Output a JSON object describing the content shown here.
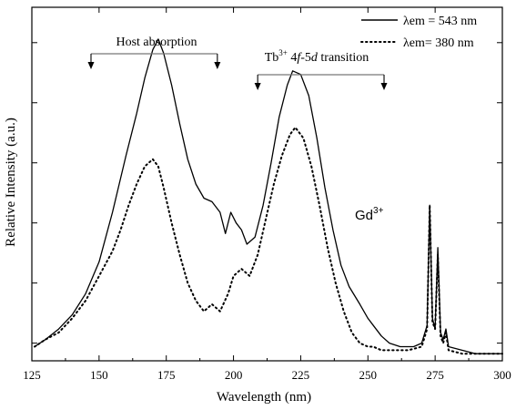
{
  "chart_data": {
    "type": "line",
    "xlabel": "Wavelength (nm)",
    "ylabel": "Relative Intensity (a.u.)",
    "xlim": [
      125,
      300
    ],
    "ylim": [
      0,
      1
    ],
    "x_ticks": [
      125,
      150,
      175,
      200,
      225,
      250,
      275,
      300
    ],
    "y_ticks": [
      0.05,
      0.22,
      0.39,
      0.56,
      0.73,
      0.9
    ],
    "y_tick_labels_shown": false,
    "grid": false,
    "legend": {
      "position": "top-right",
      "entries": [
        {
          "symbol": "λ",
          "label": "em = 543 nm",
          "style": "solid"
        },
        {
          "symbol": "λ",
          "label": "em= 380 nm",
          "style": "dotted"
        }
      ]
    },
    "annotations": {
      "host": {
        "text": "Host absorption",
        "x_start": 147,
        "x_end": 194
      },
      "tb": {
        "ion": "Tb",
        "ion_sup": "3+",
        "transition_a": "4",
        "transition_f": "f",
        "transition_b": "-5",
        "transition_d": "d",
        "suffix": " transition",
        "x_start": 209,
        "x_end": 256
      },
      "gd": {
        "ion": "Gd",
        "ion_sup": "3+"
      }
    },
    "series": [
      {
        "style": "solid",
        "points": [
          [
            126,
            0.04
          ],
          [
            130,
            0.06
          ],
          [
            135,
            0.09
          ],
          [
            140,
            0.13
          ],
          [
            145,
            0.19
          ],
          [
            150,
            0.28
          ],
          [
            155,
            0.42
          ],
          [
            160,
            0.58
          ],
          [
            164,
            0.7
          ],
          [
            167,
            0.8
          ],
          [
            170,
            0.88
          ],
          [
            172,
            0.91
          ],
          [
            174,
            0.87
          ],
          [
            177,
            0.78
          ],
          [
            180,
            0.67
          ],
          [
            183,
            0.57
          ],
          [
            186,
            0.5
          ],
          [
            189,
            0.46
          ],
          [
            192,
            0.45
          ],
          [
            195,
            0.42
          ],
          [
            197,
            0.36
          ],
          [
            199,
            0.42
          ],
          [
            201,
            0.39
          ],
          [
            203,
            0.37
          ],
          [
            205,
            0.33
          ],
          [
            208,
            0.35
          ],
          [
            211,
            0.44
          ],
          [
            214,
            0.56
          ],
          [
            217,
            0.69
          ],
          [
            220,
            0.78
          ],
          [
            222,
            0.82
          ],
          [
            225,
            0.81
          ],
          [
            228,
            0.75
          ],
          [
            231,
            0.63
          ],
          [
            234,
            0.49
          ],
          [
            237,
            0.37
          ],
          [
            240,
            0.27
          ],
          [
            243,
            0.21
          ],
          [
            247,
            0.16
          ],
          [
            250,
            0.12
          ],
          [
            252,
            0.1
          ],
          [
            255,
            0.07
          ],
          [
            258,
            0.05
          ],
          [
            262,
            0.04
          ],
          [
            267,
            0.04
          ],
          [
            270,
            0.05
          ],
          [
            272,
            0.1
          ],
          [
            273,
            0.44
          ],
          [
            274,
            0.12
          ],
          [
            275,
            0.09
          ],
          [
            276,
            0.32
          ],
          [
            277,
            0.08
          ],
          [
            278,
            0.06
          ],
          [
            279,
            0.09
          ],
          [
            280,
            0.04
          ],
          [
            285,
            0.03
          ],
          [
            290,
            0.02
          ],
          [
            295,
            0.02
          ],
          [
            300,
            0.02
          ]
        ]
      },
      {
        "style": "dotted",
        "points": [
          [
            126,
            0.04
          ],
          [
            130,
            0.06
          ],
          [
            135,
            0.08
          ],
          [
            140,
            0.12
          ],
          [
            145,
            0.17
          ],
          [
            150,
            0.24
          ],
          [
            155,
            0.31
          ],
          [
            158,
            0.37
          ],
          [
            161,
            0.44
          ],
          [
            164,
            0.5
          ],
          [
            167,
            0.55
          ],
          [
            170,
            0.57
          ],
          [
            172,
            0.55
          ],
          [
            174,
            0.49
          ],
          [
            177,
            0.39
          ],
          [
            180,
            0.3
          ],
          [
            183,
            0.22
          ],
          [
            186,
            0.17
          ],
          [
            189,
            0.14
          ],
          [
            192,
            0.16
          ],
          [
            195,
            0.14
          ],
          [
            198,
            0.19
          ],
          [
            200,
            0.24
          ],
          [
            203,
            0.26
          ],
          [
            206,
            0.24
          ],
          [
            209,
            0.3
          ],
          [
            212,
            0.4
          ],
          [
            215,
            0.5
          ],
          [
            218,
            0.58
          ],
          [
            221,
            0.64
          ],
          [
            223,
            0.66
          ],
          [
            226,
            0.63
          ],
          [
            229,
            0.55
          ],
          [
            232,
            0.44
          ],
          [
            235,
            0.32
          ],
          [
            238,
            0.22
          ],
          [
            241,
            0.14
          ],
          [
            244,
            0.08
          ],
          [
            247,
            0.05
          ],
          [
            250,
            0.04
          ],
          [
            252,
            0.04
          ],
          [
            255,
            0.03
          ],
          [
            260,
            0.03
          ],
          [
            265,
            0.03
          ],
          [
            270,
            0.04
          ],
          [
            272,
            0.09
          ],
          [
            273,
            0.44
          ],
          [
            274,
            0.11
          ],
          [
            275,
            0.09
          ],
          [
            276,
            0.3
          ],
          [
            277,
            0.07
          ],
          [
            278,
            0.05
          ],
          [
            279,
            0.08
          ],
          [
            280,
            0.03
          ],
          [
            285,
            0.02
          ],
          [
            290,
            0.02
          ],
          [
            295,
            0.02
          ],
          [
            300,
            0.02
          ]
        ]
      }
    ]
  }
}
